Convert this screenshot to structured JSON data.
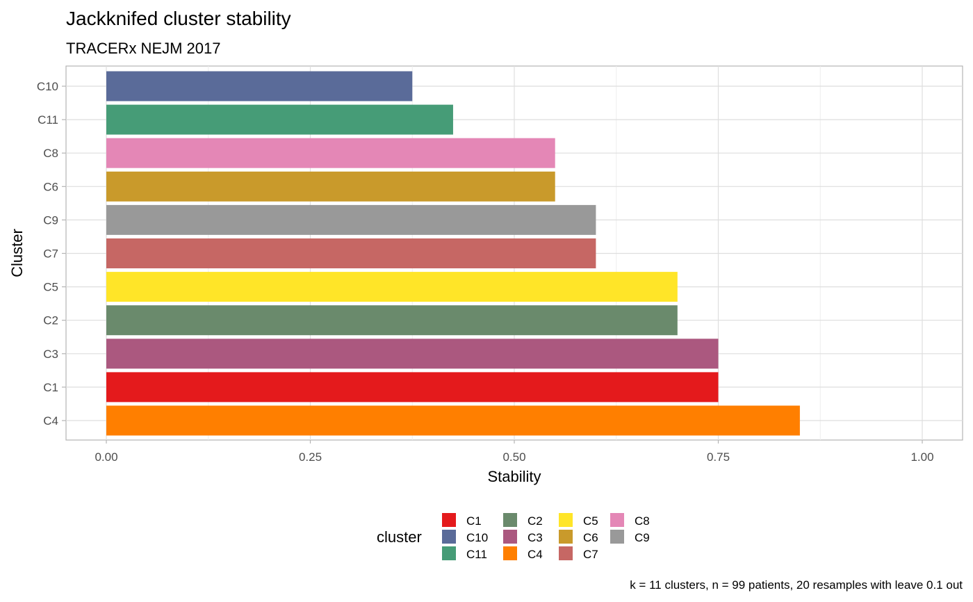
{
  "chart_data": {
    "type": "bar",
    "orientation": "horizontal",
    "title": "Jackknifed cluster stability",
    "subtitle": "TRACERx NEJM 2017",
    "xlabel": "Stability",
    "ylabel": "Cluster",
    "xlim": [
      0,
      1
    ],
    "x_ticks": [
      "0.00",
      "0.25",
      "0.50",
      "0.75",
      "1.00"
    ],
    "x_tick_values": [
      0,
      0.25,
      0.5,
      0.75,
      1.0
    ],
    "grid": true,
    "categories": [
      "C10",
      "C11",
      "C8",
      "C6",
      "C9",
      "C7",
      "C5",
      "C2",
      "C3",
      "C1",
      "C4"
    ],
    "values": [
      0.375,
      0.425,
      0.55,
      0.55,
      0.6,
      0.6,
      0.7,
      0.7,
      0.75,
      0.75,
      0.85
    ],
    "bar_colors": {
      "C1": "#E41A1C",
      "C10": "#5A6B99",
      "C11": "#469C77",
      "C2": "#6A8A6C",
      "C3": "#AB587F",
      "C4": "#FF7F00",
      "C5": "#FFE528",
      "C6": "#C99A2B",
      "C7": "#C66764",
      "C8": "#E487B6",
      "C9": "#999999"
    },
    "legend": {
      "title": "cluster",
      "placement": "bottom",
      "entries": [
        "C1",
        "C10",
        "C11",
        "C2",
        "C3",
        "C4",
        "C5",
        "C6",
        "C7",
        "C8",
        "C9"
      ]
    },
    "caption": "k = 11 clusters, n = 99 patients, 20 resamples with leave 0.1 out"
  }
}
